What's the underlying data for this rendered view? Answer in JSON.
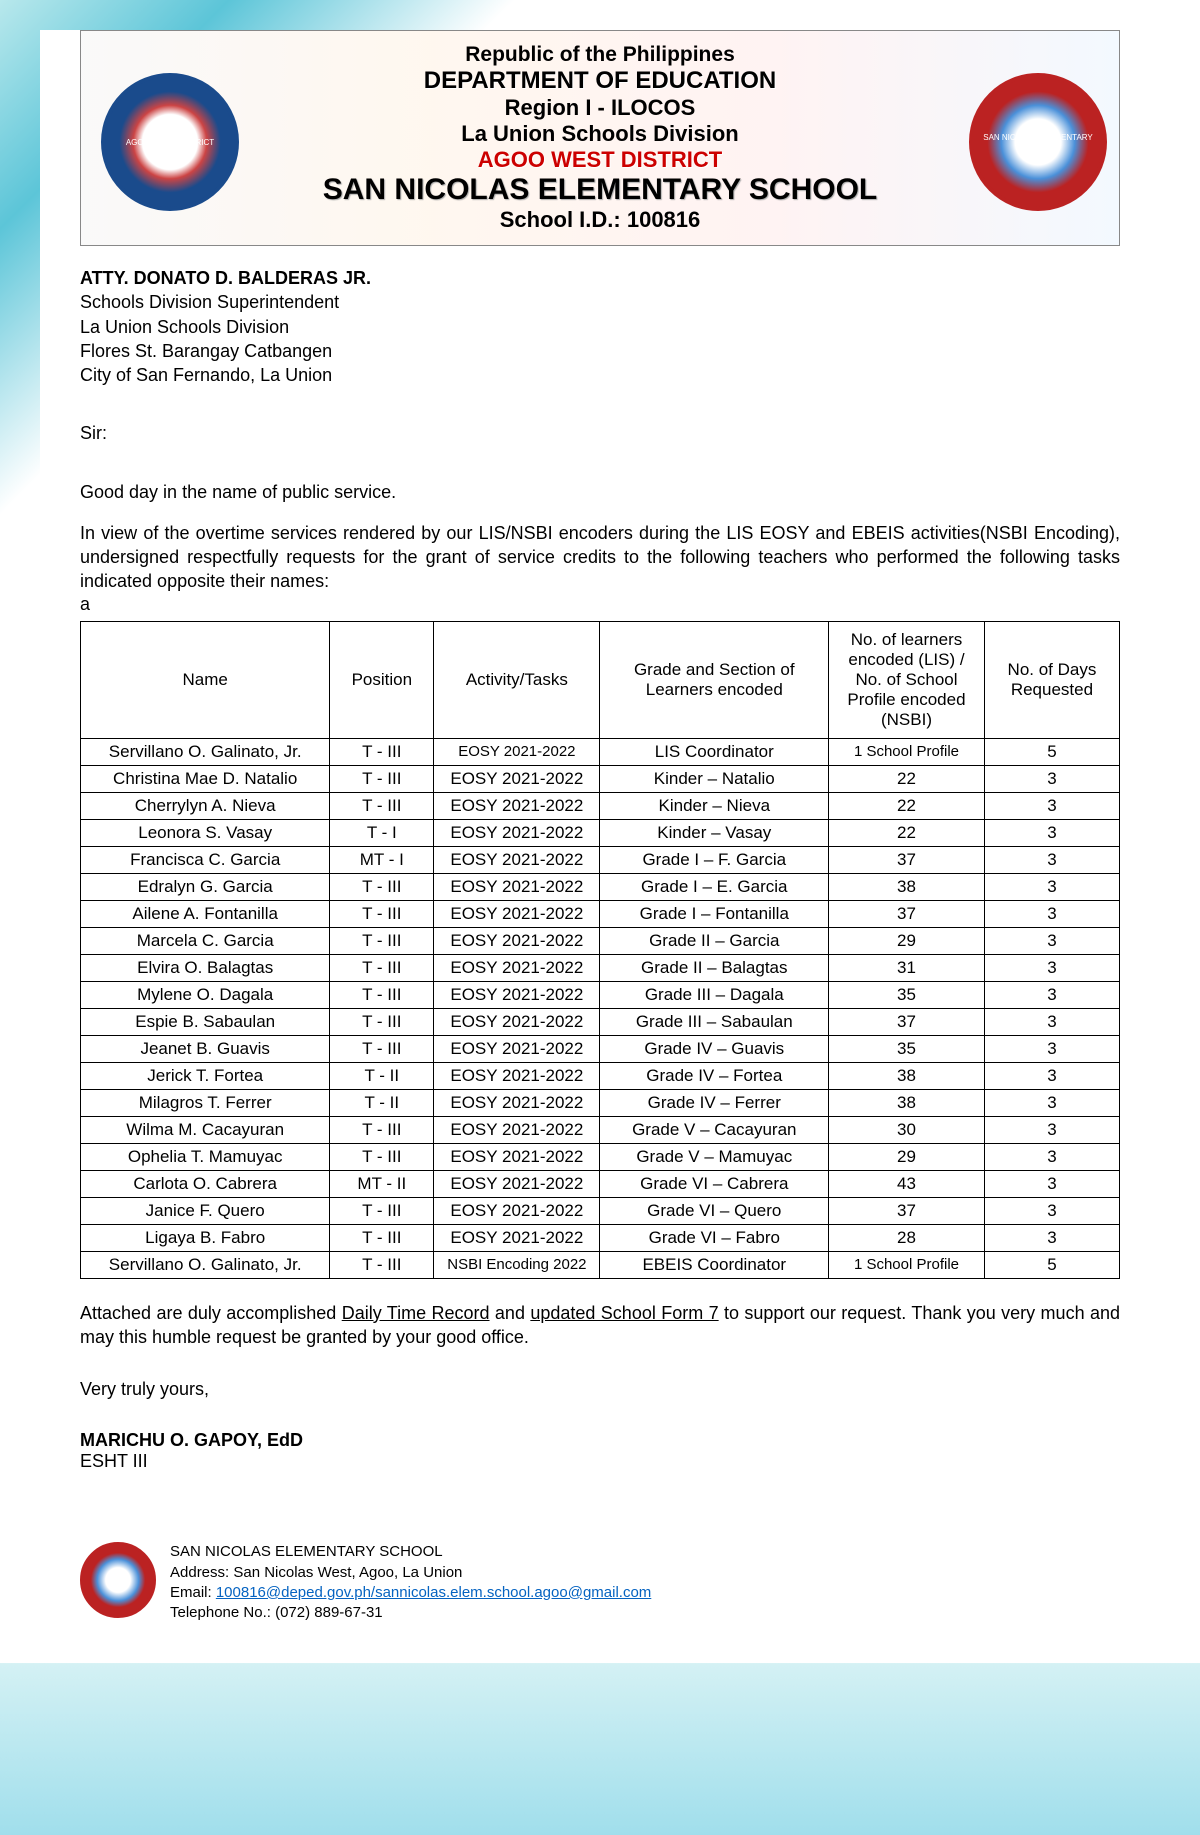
{
  "header": {
    "line1": "Republic of the Philippines",
    "line2": "DEPARTMENT OF EDUCATION",
    "line3": "Region I - ILOCOS",
    "line4": "La Union Schools Division",
    "line5": "AGOO WEST DISTRICT",
    "line6": "SAN NICOLAS ELEMENTARY SCHOOL",
    "line7": "School I.D.: 100816",
    "seal_left_label": "AGOO WEST DISTRICT",
    "seal_right_label": "SAN NICOLAS ELEMENTARY SCHOOL"
  },
  "addressee": {
    "name": "ATTY. DONATO D. BALDERAS JR.",
    "title": "Schools Division Superintendent",
    "division": "La Union Schools Division",
    "street": "Flores St. Barangay Catbangen",
    "city": "City of San Fernando, La Union"
  },
  "salutation": "Sir:",
  "body1": "Good day in the name of public service.",
  "body2": "In view of the overtime services rendered by our LIS/NSBI encoders during the LIS EOSY and EBEIS activities(NSBI Encoding), undersigned respectfully requests for the grant of service credits to the following teachers who performed the following tasks indicated opposite their names:",
  "body2_suffix": "a",
  "table": {
    "columns": [
      "Name",
      "Position",
      "Activity/Tasks",
      "Grade and Section of Learners encoded",
      "No. of learners encoded (LIS) / No. of School Profile encoded (NSBI)",
      "No. of Days Requested"
    ],
    "rows": [
      [
        "Servillano O. Galinato, Jr.",
        "T - III",
        "EOSY 2021-2022",
        "LIS Coordinator",
        "1 School Profile",
        "5"
      ],
      [
        "Christina Mae D. Natalio",
        "T - III",
        "EOSY 2021-2022",
        "Kinder – Natalio",
        "22",
        "3"
      ],
      [
        "Cherrylyn A. Nieva",
        "T - III",
        "EOSY 2021-2022",
        "Kinder – Nieva",
        "22",
        "3"
      ],
      [
        "Leonora S. Vasay",
        "T - I",
        "EOSY 2021-2022",
        "Kinder – Vasay",
        "22",
        "3"
      ],
      [
        "Francisca C. Garcia",
        "MT - I",
        "EOSY 2021-2022",
        "Grade I – F. Garcia",
        "37",
        "3"
      ],
      [
        "Edralyn G. Garcia",
        "T - III",
        "EOSY 2021-2022",
        "Grade I – E. Garcia",
        "38",
        "3"
      ],
      [
        "Ailene A. Fontanilla",
        "T - III",
        "EOSY 2021-2022",
        "Grade I – Fontanilla",
        "37",
        "3"
      ],
      [
        "Marcela C. Garcia",
        "T - III",
        "EOSY 2021-2022",
        "Grade II – Garcia",
        "29",
        "3"
      ],
      [
        "Elvira O. Balagtas",
        "T - III",
        "EOSY 2021-2022",
        "Grade II – Balagtas",
        "31",
        "3"
      ],
      [
        "Mylene O. Dagala",
        "T - III",
        "EOSY 2021-2022",
        "Grade III – Dagala",
        "35",
        "3"
      ],
      [
        "Espie B. Sabaulan",
        "T - III",
        "EOSY 2021-2022",
        "Grade III – Sabaulan",
        "37",
        "3"
      ],
      [
        "Jeanet B. Guavis",
        "T - III",
        "EOSY 2021-2022",
        "Grade IV – Guavis",
        "35",
        "3"
      ],
      [
        "Jerick T. Fortea",
        "T - II",
        "EOSY 2021-2022",
        "Grade IV – Fortea",
        "38",
        "3"
      ],
      [
        "Milagros T. Ferrer",
        "T - II",
        "EOSY 2021-2022",
        "Grade IV – Ferrer",
        "38",
        "3"
      ],
      [
        "Wilma M. Cacayuran",
        "T - III",
        "EOSY 2021-2022",
        "Grade V – Cacayuran",
        "30",
        "3"
      ],
      [
        "Ophelia T. Mamuyac",
        "T - III",
        "EOSY 2021-2022",
        "Grade V – Mamuyac",
        "29",
        "3"
      ],
      [
        "Carlota O. Cabrera",
        "MT - II",
        "EOSY 2021-2022",
        "Grade VI – Cabrera",
        "43",
        "3"
      ],
      [
        "Janice F. Quero",
        "T - III",
        "EOSY 2021-2022",
        "Grade VI – Quero",
        "37",
        "3"
      ],
      [
        "Ligaya B. Fabro",
        "T - III",
        "EOSY 2021-2022",
        "Grade VI – Fabro",
        "28",
        "3"
      ],
      [
        "Servillano O. Galinato, Jr.",
        "T - III",
        "NSBI Encoding 2022",
        "EBEIS Coordinator",
        "1 School Profile",
        "5"
      ]
    ]
  },
  "closing": {
    "prefix": "Attached are duly accomplished ",
    "u1": "Daily Time Record",
    "mid": " and ",
    "u2": "updated School Form 7",
    "suffix": " to support our request. Thank you very much and may this humble request be granted by your good office."
  },
  "signoff": "Very truly yours,",
  "signatory": {
    "name": "MARICHU O. GAPOY, EdD",
    "title": "ESHT III"
  },
  "footer": {
    "school": "SAN NICOLAS ELEMENTARY SCHOOL",
    "address": "Address: San Nicolas West, Agoo, La Union",
    "email_label": "Email: ",
    "email": "100816@deped.gov.ph/sannicolas.elem.school.agoo@gmail.com",
    "tel": "Telephone No.: (072) 889-67-31"
  }
}
